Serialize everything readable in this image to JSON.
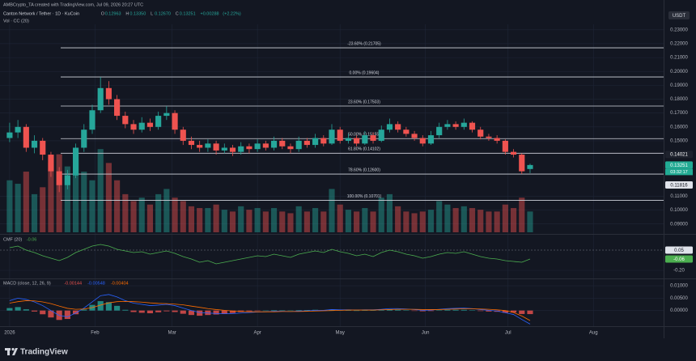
{
  "header": {
    "attribution": "AMBCrypto_TA created with TradingView.com, Jul 09, 2026 20:27 UTC",
    "symbol": "Canton Network / Tether · 1D · KuCoin",
    "ohlc": [
      {
        "name": "O",
        "value": 0.12963,
        "label": "0.12963"
      },
      {
        "name": "H",
        "value": 0.1335,
        "label": "0.13350"
      },
      {
        "name": "L",
        "value": 0.1267,
        "label": "0.12670"
      },
      {
        "name": "C",
        "value": 0.13251,
        "label": "0.13251"
      }
    ],
    "change": {
      "value": 0.00288,
      "label": "+0.00288"
    },
    "change_pct": {
      "value": 2.22,
      "label": "(+2.22%)"
    },
    "volume_legend": "Vol · CC (20)",
    "currency": "USDT"
  },
  "chart_data": {
    "type": "candlestick",
    "up_color": "#26a69a",
    "down_color": "#ef5350",
    "grid": true,
    "xlim": [
      -3.5,
      237.5
    ],
    "xticks": [
      {
        "value": 0,
        "label": "2026"
      },
      {
        "value": 31,
        "label": "Feb"
      },
      {
        "value": 59,
        "label": "Mar"
      },
      {
        "value": 90,
        "label": "Apr"
      },
      {
        "value": 120,
        "label": "May"
      },
      {
        "value": 151,
        "label": "Jun"
      },
      {
        "value": 181,
        "label": "Jul"
      },
      {
        "value": 212,
        "label": "Aug"
      }
    ],
    "ylim": [
      0.084,
      0.234
    ],
    "yticks": [
      {
        "value": 0.23,
        "label": "0.23000"
      },
      {
        "value": 0.22,
        "label": "0.22000"
      },
      {
        "value": 0.21,
        "label": "0.21000"
      },
      {
        "value": 0.2,
        "label": "0.20000"
      },
      {
        "value": 0.19,
        "label": "0.19000"
      },
      {
        "value": 0.18,
        "label": "0.18000"
      },
      {
        "value": 0.17,
        "label": "0.17000"
      },
      {
        "value": 0.16,
        "label": "0.16000"
      },
      {
        "value": 0.15,
        "label": "0.15000"
      },
      {
        "value": 0.11,
        "label": "0.11000"
      },
      {
        "value": 0.1,
        "label": "0.10000"
      },
      {
        "value": 0.09,
        "label": "0.09000"
      }
    ],
    "x": [
      0,
      3,
      6,
      9,
      12,
      15,
      18,
      21,
      24,
      27,
      30,
      33,
      36,
      39,
      42,
      45,
      48,
      51,
      54,
      57,
      60,
      63,
      66,
      69,
      72,
      75,
      78,
      81,
      84,
      87,
      90,
      93,
      96,
      99,
      102,
      105,
      108,
      111,
      114,
      117,
      120,
      123,
      126,
      129,
      132,
      135,
      138,
      141,
      144,
      147,
      150,
      153,
      156,
      159,
      162,
      165,
      168,
      171,
      174,
      177,
      180,
      183,
      186,
      189
    ],
    "open": [
      0.152,
      0.156,
      0.16,
      0.145,
      0.15,
      0.14,
      0.128,
      0.118,
      0.125,
      0.145,
      0.158,
      0.172,
      0.188,
      0.18,
      0.168,
      0.162,
      0.158,
      0.163,
      0.16,
      0.168,
      0.17,
      0.158,
      0.15,
      0.147,
      0.145,
      0.148,
      0.143,
      0.145,
      0.142,
      0.146,
      0.144,
      0.148,
      0.145,
      0.15,
      0.146,
      0.144,
      0.15,
      0.147,
      0.152,
      0.148,
      0.158,
      0.15,
      0.152,
      0.148,
      0.154,
      0.15,
      0.158,
      0.162,
      0.158,
      0.155,
      0.152,
      0.148,
      0.154,
      0.16,
      0.162,
      0.16,
      0.163,
      0.158,
      0.153,
      0.152,
      0.15,
      0.142,
      0.14,
      0.12963
    ],
    "high": [
      0.163,
      0.165,
      0.162,
      0.154,
      0.152,
      0.142,
      0.131,
      0.129,
      0.148,
      0.162,
      0.176,
      0.196,
      0.193,
      0.183,
      0.171,
      0.165,
      0.167,
      0.166,
      0.171,
      0.175,
      0.172,
      0.16,
      0.153,
      0.15,
      0.151,
      0.15,
      0.148,
      0.147,
      0.149,
      0.148,
      0.151,
      0.15,
      0.153,
      0.152,
      0.148,
      0.153,
      0.152,
      0.155,
      0.154,
      0.162,
      0.16,
      0.155,
      0.154,
      0.157,
      0.156,
      0.161,
      0.166,
      0.164,
      0.16,
      0.157,
      0.154,
      0.157,
      0.163,
      0.165,
      0.164,
      0.166,
      0.164,
      0.16,
      0.155,
      0.154,
      0.151,
      0.144,
      0.141,
      0.1335
    ],
    "low": [
      0.149,
      0.152,
      0.142,
      0.141,
      0.136,
      0.124,
      0.113,
      0.115,
      0.123,
      0.142,
      0.155,
      0.17,
      0.176,
      0.165,
      0.159,
      0.155,
      0.156,
      0.157,
      0.158,
      0.165,
      0.155,
      0.147,
      0.144,
      0.142,
      0.142,
      0.14,
      0.141,
      0.139,
      0.14,
      0.141,
      0.142,
      0.143,
      0.143,
      0.144,
      0.141,
      0.142,
      0.145,
      0.145,
      0.146,
      0.147,
      0.148,
      0.148,
      0.146,
      0.147,
      0.148,
      0.149,
      0.156,
      0.156,
      0.153,
      0.15,
      0.146,
      0.147,
      0.152,
      0.158,
      0.158,
      0.158,
      0.156,
      0.151,
      0.15,
      0.148,
      0.14,
      0.138,
      0.126,
      0.1267
    ],
    "close": [
      0.156,
      0.16,
      0.145,
      0.15,
      0.14,
      0.128,
      0.118,
      0.125,
      0.145,
      0.158,
      0.172,
      0.188,
      0.18,
      0.168,
      0.162,
      0.158,
      0.163,
      0.16,
      0.168,
      0.17,
      0.158,
      0.15,
      0.147,
      0.145,
      0.148,
      0.143,
      0.145,
      0.142,
      0.146,
      0.144,
      0.148,
      0.145,
      0.15,
      0.146,
      0.144,
      0.15,
      0.147,
      0.152,
      0.148,
      0.158,
      0.15,
      0.152,
      0.148,
      0.154,
      0.15,
      0.158,
      0.162,
      0.158,
      0.155,
      0.152,
      0.148,
      0.154,
      0.16,
      0.162,
      0.16,
      0.163,
      0.158,
      0.153,
      0.152,
      0.15,
      0.142,
      0.14,
      0.128,
      0.13251
    ],
    "volume": [
      30,
      28,
      35,
      22,
      26,
      40,
      45,
      38,
      42,
      35,
      30,
      48,
      40,
      30,
      22,
      18,
      20,
      16,
      22,
      25,
      20,
      18,
      15,
      14,
      14,
      16,
      13,
      12,
      15,
      13,
      14,
      12,
      14,
      12,
      11,
      15,
      12,
      14,
      12,
      25,
      16,
      13,
      12,
      14,
      12,
      20,
      22,
      15,
      12,
      11,
      12,
      13,
      18,
      16,
      14,
      15,
      14,
      13,
      12,
      12,
      16,
      14,
      20,
      12
    ],
    "volume_ylim": [
      0,
      120
    ],
    "fib_levels": [
      {
        "value": 0.21705,
        "label": "-23.60% (0.21705)"
      },
      {
        "value": 0.19604,
        "label": "0.00% (0.19604)"
      },
      {
        "value": 0.17503,
        "label": "23.60% (0.17503)"
      },
      {
        "value": 0.15155,
        "label": "50.00% (0.15155)"
      },
      {
        "value": 0.14102,
        "label": "61.80% (0.14102)"
      },
      {
        "value": 0.126,
        "label": "78.60% (0.12600)"
      },
      {
        "value": 0.10701,
        "label": "100.00% (0.10701)"
      }
    ],
    "price_labels": [
      {
        "value": 0.14021,
        "label": "0.14021",
        "color": "#1e222d",
        "text_color": "#ffffff"
      },
      {
        "value": 0.13251,
        "label": "0.13251",
        "color": "#22ab94",
        "text_color": "#ffffff"
      },
      {
        "value": 0.11816,
        "label": "0.11816",
        "color": "#e0e3eb",
        "text_color": "#131722"
      }
    ],
    "countdown": "03:32:17",
    "indicators": [
      {
        "type": "line",
        "name": "CMF (20)",
        "color": "#4caf50",
        "values": [
          0.08,
          0.1,
          0.05,
          0.02,
          -0.02,
          -0.05,
          -0.08,
          -0.04,
          0.02,
          0.06,
          0.1,
          0.12,
          0.1,
          0.06,
          0.04,
          0.02,
          0.03,
          0.0,
          0.02,
          0.04,
          0.01,
          -0.03,
          -0.06,
          -0.1,
          -0.08,
          -0.12,
          -0.1,
          -0.08,
          -0.06,
          -0.04,
          -0.02,
          -0.03,
          0.0,
          -0.02,
          -0.04,
          0.0,
          0.02,
          0.04,
          0.02,
          0.06,
          0.03,
          0.01,
          -0.02,
          0.0,
          -0.03,
          0.02,
          0.05,
          0.03,
          0.0,
          -0.02,
          -0.05,
          -0.03,
          0.0,
          0.02,
          0.01,
          0.03,
          0.0,
          -0.03,
          -0.05,
          -0.06,
          -0.08,
          -0.09,
          -0.1,
          -0.06
        ],
        "ylim": [
          -0.28,
          0.22
        ],
        "yticks": [
          {
            "value": -0.2,
            "label": "-0.20"
          }
        ],
        "levels": [
          {
            "value": 0.05,
            "label": "0.05"
          }
        ],
        "legend_value": {
          "value": -0.06,
          "label": "-0.06"
        }
      },
      {
        "type": "macd",
        "name": "MACD (close, 12, 26, 9)",
        "macd_color": "#2962ff",
        "signal_color": "#ff6d00",
        "hist_up_color": "#26a69a",
        "hist_down_color": "#ef5350",
        "histogram": [
          0.001,
          0.0014,
          0.0005,
          -0.0004,
          -0.0015,
          -0.0028,
          -0.0038,
          -0.0034,
          -0.0015,
          0.0004,
          0.0023,
          0.0038,
          0.0034,
          0.0019,
          0.0003,
          -0.0006,
          -0.0009,
          -0.0011,
          -0.0007,
          -0.0003,
          -0.0006,
          -0.0013,
          -0.0018,
          -0.0021,
          -0.0018,
          -0.0016,
          -0.0014,
          -0.001,
          -0.0006,
          -0.0003,
          -0.0001,
          0,
          0.0002,
          0.0001,
          0,
          0.0002,
          0.0002,
          0.0003,
          0.0002,
          0.0004,
          0.0002,
          0.0001,
          0,
          0.0001,
          0.0001,
          0.0002,
          0.0004,
          0.0003,
          0.0001,
          -0.0001,
          -0.0003,
          -0.0002,
          0.0001,
          0.0003,
          0.0003,
          0.0003,
          0.0001,
          -0.0002,
          -0.0004,
          -0.0005,
          -0.0009,
          -0.0008,
          -0.0014,
          -0.00144
        ],
        "macd": [
          0.004,
          0.005,
          0.0045,
          0.0035,
          0.002,
          0,
          -0.002,
          -0.0025,
          -0.001,
          0.001,
          0.0035,
          0.006,
          0.0065,
          0.0055,
          0.004,
          0.003,
          0.0025,
          0.002,
          0.0022,
          0.0025,
          0.002,
          0.001,
          0,
          -0.0008,
          -0.001,
          -0.0012,
          -0.0013,
          -0.0012,
          -0.001,
          -0.0008,
          -0.0006,
          -0.0005,
          -0.0003,
          -0.0003,
          -0.0004,
          -0.0002,
          -0.0001,
          0.0001,
          0.0001,
          0.0004,
          0.0003,
          0.0003,
          0.0002,
          0.0003,
          0.0003,
          0.0005,
          0.0008,
          0.0008,
          0.0006,
          0.0004,
          0.0001,
          0.0002,
          0.0005,
          0.0008,
          0.0009,
          0.001,
          0.0008,
          0.0004,
          0.0001,
          -0.0002,
          -0.0009,
          -0.0016,
          -0.0036,
          -0.00548
        ],
        "signal": [
          0.003,
          0.0036,
          0.004,
          0.0039,
          0.0035,
          0.0028,
          0.0018,
          0.0009,
          0.0005,
          0.0006,
          0.0012,
          0.0022,
          0.0031,
          0.0036,
          0.0037,
          0.0036,
          0.0034,
          0.0031,
          0.0029,
          0.0028,
          0.0026,
          0.0023,
          0.0018,
          0.0013,
          0.0008,
          0.0004,
          0.0001,
          -0.0002,
          -0.0004,
          -0.0005,
          -0.0005,
          -0.0005,
          -0.0005,
          -0.0004,
          -0.0004,
          -0.0004,
          -0.0003,
          -0.0002,
          -0.0001,
          0,
          0.0001,
          0.0002,
          0.0002,
          0.0002,
          0.0002,
          0.0003,
          0.0004,
          0.0005,
          0.0005,
          0.0005,
          0.0004,
          0.0004,
          0.0004,
          0.0005,
          0.0006,
          0.0007,
          0.0007,
          0.0006,
          0.0005,
          0.0003,
          0,
          -0.0008,
          -0.0022,
          -0.00404
        ],
        "ylim": [
          -0.006,
          0.012
        ],
        "yticks": [
          {
            "value": 0.01,
            "label": "0.01000"
          },
          {
            "value": 0.005,
            "label": "0.00500"
          },
          {
            "value": 0,
            "label": "0.00000"
          }
        ],
        "legend_values": [
          {
            "value": -0.00144,
            "label": "-0.00144"
          },
          {
            "value": -0.00548,
            "label": "-0.00548"
          },
          {
            "value": -0.00404,
            "label": "-0.00404"
          }
        ]
      }
    ]
  },
  "footer": {
    "brand": "TradingView"
  }
}
